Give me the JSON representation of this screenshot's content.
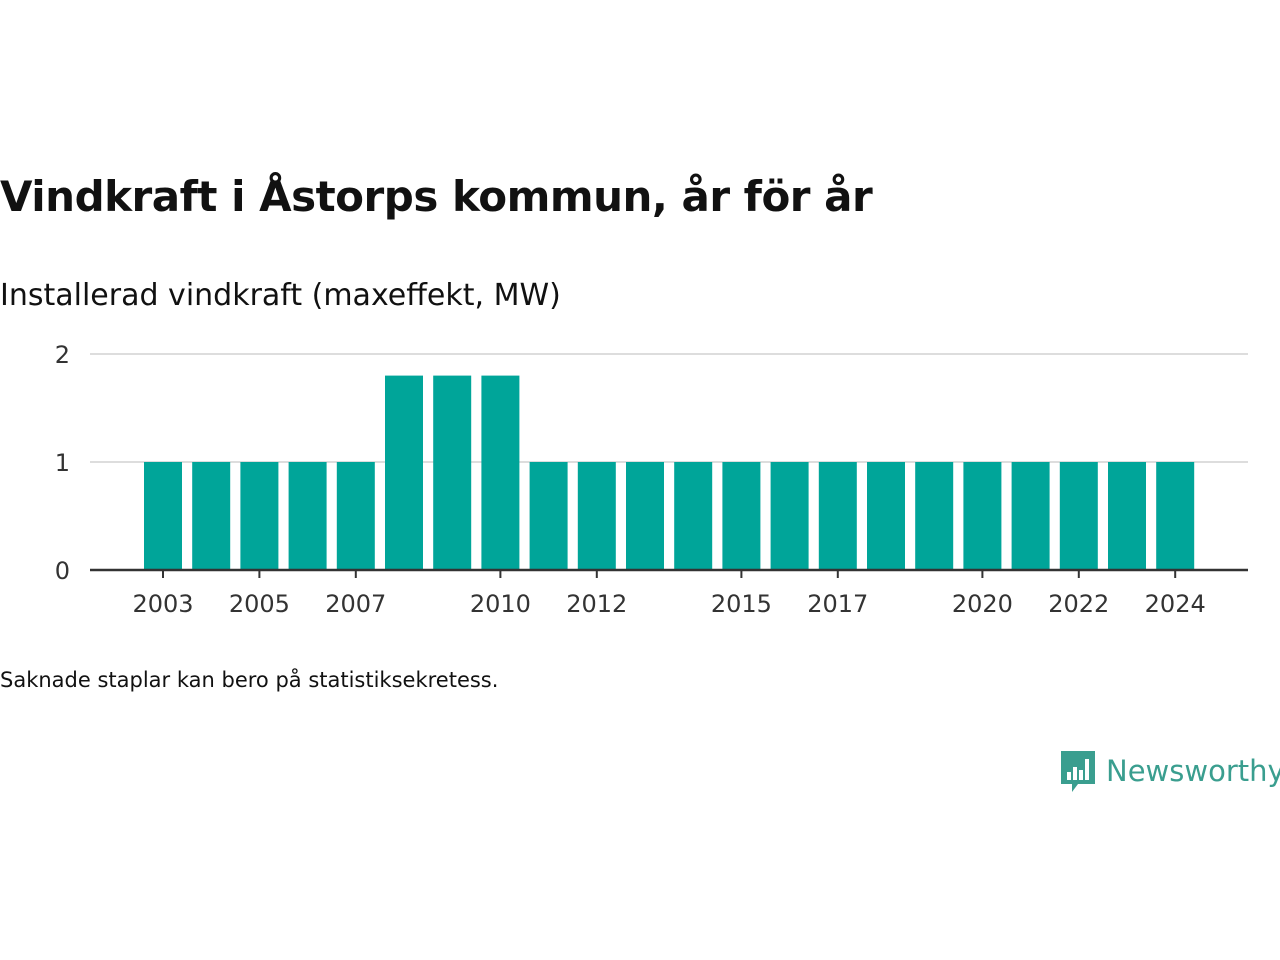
{
  "title": "Vindkraft i Åstorps kommun, år för år",
  "subtitle": "Installerad vindkraft (maxeffekt, MW)",
  "note": "Saknade staplar kan bero på statistiksekretess.",
  "brand": {
    "name": "Newsworthy",
    "icon": "newsworthy-logo-icon",
    "color": "#3a9e8f"
  },
  "chart_data": {
    "type": "bar",
    "title": "Vindkraft i Åstorps kommun, år för år",
    "ylabel": "Installerad vindkraft (maxeffekt, MW)",
    "xlabel": "",
    "categories": [
      "2003",
      "2004",
      "2005",
      "2006",
      "2007",
      "2008",
      "2009",
      "2010",
      "2011",
      "2012",
      "2013",
      "2014",
      "2015",
      "2016",
      "2017",
      "2018",
      "2019",
      "2020",
      "2021",
      "2022",
      "2023",
      "2024"
    ],
    "values": [
      1,
      1,
      1,
      1,
      1,
      1.8,
      1.8,
      1.8,
      1,
      1,
      1,
      1,
      1,
      1,
      1,
      1,
      1,
      1,
      1,
      1,
      1,
      1
    ],
    "x_tick_labels": [
      "2003",
      "2005",
      "2007",
      "2010",
      "2012",
      "2015",
      "2017",
      "2020",
      "2022",
      "2024"
    ],
    "y_ticks": [
      "0",
      "1",
      "2"
    ],
    "ylim": [
      0,
      2
    ],
    "grid": true,
    "bar_color": "#00a599",
    "grid_color": "#dddddd",
    "axis_color": "#333333"
  }
}
